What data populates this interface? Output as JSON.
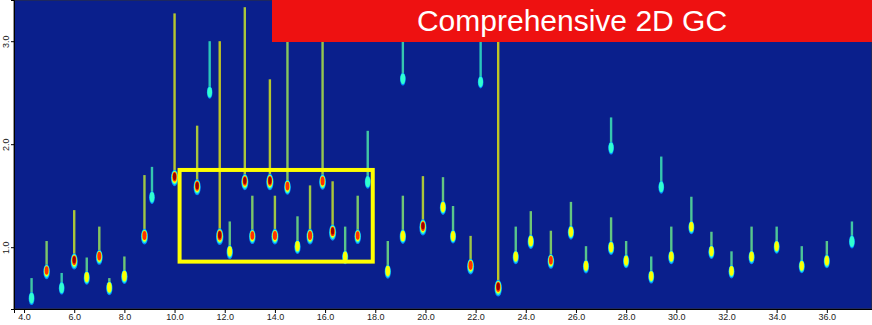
{
  "chart_data": {
    "type": "contour",
    "title": "Comprehensive 2D GC",
    "xlim": [
      3.6,
      37.8
    ],
    "xticks": [
      {
        "value": 4,
        "label": "4.0"
      },
      {
        "value": 6,
        "label": "6.0"
      },
      {
        "value": 8,
        "label": "8.0"
      },
      {
        "value": 10,
        "label": "10.0"
      },
      {
        "value": 12,
        "label": "12.0"
      },
      {
        "value": 14,
        "label": "14.0"
      },
      {
        "value": 16,
        "label": "16.0"
      },
      {
        "value": 18,
        "label": "18.0"
      },
      {
        "value": 20,
        "label": "20.0"
      },
      {
        "value": 22,
        "label": "22.0"
      },
      {
        "value": 24,
        "label": "24.0"
      },
      {
        "value": 26,
        "label": "26.0"
      },
      {
        "value": 28,
        "label": "28.0"
      },
      {
        "value": 30,
        "label": "30.0"
      },
      {
        "value": 32,
        "label": "32.0"
      },
      {
        "value": 34,
        "label": "34.0"
      },
      {
        "value": 36,
        "label": "36.0"
      }
    ],
    "ylim": [
      0.4,
      3.4
    ],
    "yticks": [
      {
        "value": 1,
        "label": "1.0"
      },
      {
        "value": 2,
        "label": "2.0"
      },
      {
        "value": 3,
        "label": "3.0"
      }
    ],
    "peaks": {
      "x": [
        4.3,
        4.9,
        5.5,
        6.0,
        6.5,
        7.0,
        7.4,
        8.0,
        8.8,
        9.1,
        10.0,
        10.9,
        11.4,
        11.8,
        12.2,
        12.8,
        13.1,
        13.8,
        14.0,
        14.5,
        14.9,
        15.4,
        15.9,
        16.3,
        16.8,
        17.3,
        17.7,
        18.5,
        19.1,
        19.1,
        19.9,
        20.7,
        21.1,
        21.8,
        22.2,
        22.9,
        23.6,
        24.2,
        25.0,
        25.8,
        26.4,
        27.4,
        27.4,
        28.0,
        29.0,
        29.4,
        29.8,
        30.6,
        31.4,
        32.2,
        33.0,
        34.0,
        35.0,
        36.0,
        37.0
      ],
      "y": [
        0.5,
        0.76,
        0.6,
        0.86,
        0.7,
        0.9,
        0.6,
        0.71,
        1.1,
        1.48,
        1.67,
        1.58,
        2.5,
        1.1,
        0.95,
        1.63,
        1.1,
        1.63,
        1.1,
        1.58,
        1.0,
        1.1,
        1.63,
        1.14,
        0.9,
        1.1,
        1.63,
        0.76,
        1.1,
        2.63,
        1.19,
        1.38,
        1.1,
        0.81,
        2.6,
        0.6,
        0.9,
        1.05,
        0.86,
        1.14,
        0.81,
        0.99,
        1.96,
        0.86,
        0.71,
        1.58,
        0.9,
        1.19,
        0.95,
        0.76,
        0.9,
        1.0,
        0.81,
        0.86,
        1.05
      ],
      "intensity": [
        45,
        70,
        40,
        90,
        55,
        75,
        60,
        65,
        85,
        40,
        95,
        90,
        35,
        100,
        60,
        90,
        70,
        95,
        85,
        75,
        60,
        85,
        80,
        90,
        55,
        70,
        45,
        60,
        65,
        40,
        90,
        60,
        55,
        85,
        35,
        100,
        55,
        65,
        70,
        60,
        55,
        60,
        40,
        55,
        50,
        40,
        55,
        50,
        55,
        50,
        55,
        50,
        50,
        55,
        45
      ],
      "tail": [
        0.2,
        0.3,
        0.15,
        0.5,
        0.2,
        0.3,
        0.1,
        0.2,
        0.6,
        0.3,
        1.6,
        0.6,
        0.5,
        1.9,
        0.3,
        1.7,
        0.4,
        1.0,
        0.4,
        1.8,
        0.3,
        0.5,
        1.4,
        0.5,
        0.3,
        0.4,
        0.5,
        0.3,
        0.4,
        0.6,
        0.5,
        0.3,
        0.3,
        0.3,
        0.5,
        2.4,
        0.3,
        0.3,
        0.3,
        0.3,
        0.2,
        0.3,
        0.3,
        0.2,
        0.2,
        0.3,
        0.3,
        0.3,
        0.2,
        0.2,
        0.3,
        0.2,
        0.2,
        0.2,
        0.2
      ]
    },
    "highlight": {
      "x0": 10.2,
      "x1": 17.9,
      "y0": 0.86,
      "y1": 1.75
    }
  }
}
